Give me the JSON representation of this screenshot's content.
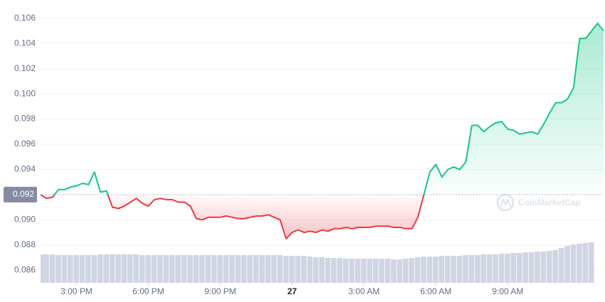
{
  "chart_data": {
    "type": "line",
    "x": [
      13.5,
      13.75,
      14,
      14.25,
      14.5,
      14.75,
      15,
      15.25,
      15.5,
      15.75,
      16,
      16.25,
      16.5,
      16.75,
      17,
      17.25,
      17.5,
      17.75,
      18,
      18.25,
      18.5,
      18.75,
      19,
      19.25,
      19.5,
      19.75,
      20,
      20.25,
      20.5,
      20.75,
      21,
      21.25,
      21.5,
      21.75,
      22,
      22.25,
      22.5,
      22.75,
      23,
      23.25,
      23.5,
      23.75,
      24,
      24.25,
      24.5,
      24.75,
      25,
      25.25,
      25.5,
      25.75,
      26,
      26.25,
      26.5,
      26.75,
      27,
      27.25,
      27.5,
      27.75,
      28,
      28.25,
      28.5,
      28.75,
      29,
      29.25,
      29.5,
      29.75,
      30,
      30.25,
      30.5,
      30.75,
      31,
      31.25,
      31.5,
      31.75,
      32,
      32.25,
      32.5,
      32.75,
      33,
      33.25,
      33.5,
      33.75,
      34,
      34.25,
      34.5,
      34.75,
      35,
      35.25,
      35.5,
      35.75,
      36,
      36.25,
      36.5,
      36.75,
      37
    ],
    "series": [
      {
        "values": [
          0.092,
          0.0917,
          0.0918,
          0.0924,
          0.0924,
          0.0926,
          0.0927,
          0.0929,
          0.0928,
          0.0938,
          0.0922,
          0.0923,
          0.091,
          0.0909,
          0.0911,
          0.0914,
          0.0917,
          0.0913,
          0.0911,
          0.0916,
          0.0917,
          0.0916,
          0.0916,
          0.0914,
          0.0914,
          0.0911,
          0.0901,
          0.09,
          0.0902,
          0.0902,
          0.0902,
          0.0903,
          0.0902,
          0.0901,
          0.0901,
          0.0902,
          0.0903,
          0.0903,
          0.0904,
          0.0902,
          0.09,
          0.0885,
          0.089,
          0.0892,
          0.089,
          0.0891,
          0.089,
          0.0892,
          0.0891,
          0.0893,
          0.0893,
          0.0894,
          0.0893,
          0.0894,
          0.0894,
          0.0894,
          0.0895,
          0.0895,
          0.0895,
          0.0894,
          0.0894,
          0.0893,
          0.0893,
          0.0902,
          0.092,
          0.0938,
          0.0944,
          0.0934,
          0.094,
          0.0942,
          0.094,
          0.0946,
          0.0975,
          0.0975,
          0.097,
          0.0974,
          0.0977,
          0.0978,
          0.0972,
          0.0971,
          0.0968,
          0.0969,
          0.097,
          0.0968,
          0.0976,
          0.0985,
          0.0993,
          0.0993,
          0.0996,
          0.1005,
          0.1044,
          0.1044,
          0.105,
          0.1056,
          0.105
        ]
      }
    ],
    "up_color": "#16c784",
    "down_color": "#ea3943",
    "baseline": 0.092,
    "volume": {
      "color": "#cfd5e2",
      "ylim": [
        0,
        100
      ],
      "values": [
        40,
        40,
        40,
        39,
        39,
        39,
        39,
        39,
        39,
        39,
        40,
        40,
        40,
        40,
        40,
        40,
        40,
        39,
        39,
        39,
        39,
        39,
        39,
        39,
        39,
        39,
        39,
        39,
        39,
        39,
        39,
        39,
        39,
        39,
        39,
        39,
        39,
        39,
        39,
        39,
        39,
        38,
        38,
        38,
        38,
        37,
        36,
        36,
        35,
        35,
        35,
        34,
        34,
        34,
        34,
        34,
        34,
        34,
        34,
        33,
        33,
        34,
        35,
        36,
        37,
        37,
        37,
        38,
        38,
        38,
        38,
        39,
        39,
        39,
        40,
        40,
        40,
        41,
        41,
        42,
        42,
        43,
        43,
        44,
        44,
        45,
        46,
        49,
        52,
        54,
        55,
        56,
        57
      ]
    },
    "xlim": [
      13.5,
      37
    ],
    "xticks": [
      {
        "value": 15,
        "label": "3:00 PM"
      },
      {
        "value": 18,
        "label": "6:00 PM"
      },
      {
        "value": 21,
        "label": "9:00 PM"
      },
      {
        "value": 24,
        "label": "27"
      },
      {
        "value": 27,
        "label": "3:00 AM"
      },
      {
        "value": 30,
        "label": "6:00 AM"
      },
      {
        "value": 33,
        "label": "9:00 AM"
      }
    ],
    "ylim": [
      0.085,
      0.107
    ],
    "yticks": [
      0.086,
      0.088,
      {
        "value": 0.09,
        "label": "0.090"
      },
      0.092,
      0.094,
      0.096,
      0.098,
      {
        "value": 0.1,
        "label": "0.100"
      },
      0.102,
      0.104,
      0.106
    ],
    "grid": true,
    "watermark": "CoinMarketCap"
  }
}
